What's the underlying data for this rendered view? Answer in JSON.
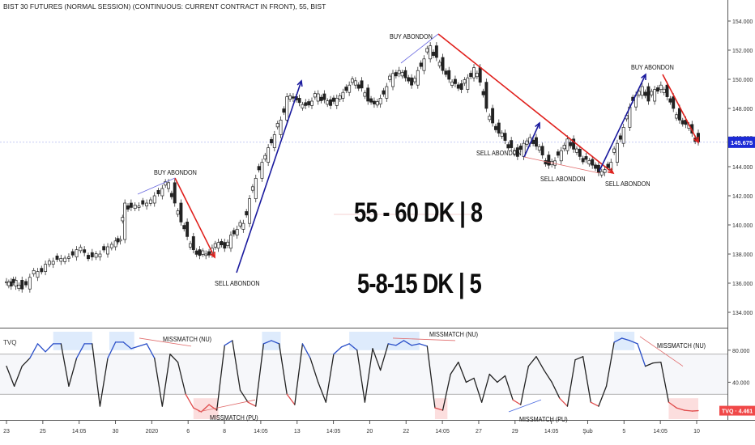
{
  "title": "BIST 30 FUTURES (NORMAL SESSION) (CONTINUOUS: CURRENT CONTRACT IN FRONT), 55, BIST",
  "big_text_1": "55 - 60 DK |  8",
  "big_text_2": "5-8-15 DK |  5",
  "annotations": {
    "buy1": "BUY ABONDON",
    "sell1": "SELL ABONDON",
    "buy2": "BUY ABONDON",
    "sell2": "SELL ABONDON",
    "sell3": "SELL ABONDON",
    "buy3": "BUY ABONDON",
    "sell4": "SELL ABONDON"
  },
  "mismatch": {
    "m1": "MISSMATCH (NU)",
    "m2": "MISSMATCH (PU)",
    "m3": "MISSMATCH (NU)",
    "m4": "MISSMATCH (PU)",
    "m5": "MISSMATCH (NU)"
  },
  "indicator_label": "TVQ",
  "colors": {
    "up": "#222222",
    "down": "#222222",
    "blue_trend": "#1a1a9e",
    "red_trend": "#e0201c",
    "price_tag": "#1d2bd6",
    "tvq_tag": "#f04848",
    "tvq_blue": "#2a4fc9",
    "tvq_red": "#e04a4a",
    "zone_blue": "#d6e6fb",
    "zone_red": "#fbd6d6"
  },
  "chart_data": {
    "type": "line",
    "price_axis": {
      "ticks": [
        154000,
        152000,
        150000,
        148000,
        146000,
        144000,
        142000,
        140000,
        138000,
        136000,
        134000
      ],
      "labels": [
        "154.000",
        "152.000",
        "150.000",
        "148.000",
        "146.000",
        "144.000",
        "142.000",
        "140.000",
        "138.000",
        "136.000",
        "134.000"
      ],
      "range": [
        133000,
        155000
      ]
    },
    "last_price": {
      "value": 145675,
      "label": "145.675"
    },
    "indicator_axis": {
      "ticks": [
        80,
        40
      ],
      "labels": [
        "80.000",
        "40.000"
      ],
      "range": [
        0,
        100
      ]
    },
    "indicator_last": {
      "value": 4.461,
      "label": "TVQ · 4.461"
    },
    "x_ticks": [
      "23",
      "25",
      "14:05",
      "30",
      "2020",
      "6",
      "8",
      "14:05",
      "13",
      "14:05",
      "20",
      "22",
      "14:05",
      "27",
      "29",
      "14:05",
      "Şub",
      "5",
      "14:05",
      "10"
    ],
    "price_series": [
      {
        "x": 0,
        "y": 136100
      },
      {
        "x": 0.3,
        "y": 135800
      },
      {
        "x": 0.6,
        "y": 136200
      },
      {
        "x": 1,
        "y": 135600
      },
      {
        "x": 1.5,
        "y": 136400
      },
      {
        "x": 2,
        "y": 136800
      },
      {
        "x": 2.5,
        "y": 137300
      },
      {
        "x": 3,
        "y": 137500
      },
      {
        "x": 3.5,
        "y": 137700
      },
      {
        "x": 4,
        "y": 137800
      },
      {
        "x": 4.5,
        "y": 138300
      },
      {
        "x": 5,
        "y": 138100
      },
      {
        "x": 5.5,
        "y": 137800
      },
      {
        "x": 6,
        "y": 138000
      },
      {
        "x": 6.5,
        "y": 138500
      },
      {
        "x": 7,
        "y": 138900
      },
      {
        "x": 7.3,
        "y": 139000
      },
      {
        "x": 7.6,
        "y": 141500
      },
      {
        "x": 8,
        "y": 141200
      },
      {
        "x": 8.5,
        "y": 141300
      },
      {
        "x": 9,
        "y": 141500
      },
      {
        "x": 9.5,
        "y": 142000
      },
      {
        "x": 10,
        "y": 142500
      },
      {
        "x": 10.4,
        "y": 142900
      },
      {
        "x": 10.8,
        "y": 141500
      },
      {
        "x": 11.2,
        "y": 140200
      },
      {
        "x": 11.6,
        "y": 139200
      },
      {
        "x": 12,
        "y": 138300
      },
      {
        "x": 12.4,
        "y": 137900
      },
      {
        "x": 12.8,
        "y": 138000
      },
      {
        "x": 13.2,
        "y": 138400
      },
      {
        "x": 13.6,
        "y": 138800
      },
      {
        "x": 14,
        "y": 138400
      },
      {
        "x": 14.4,
        "y": 139300
      },
      {
        "x": 14.8,
        "y": 139700
      },
      {
        "x": 15.2,
        "y": 140100
      },
      {
        "x": 15.6,
        "y": 141800
      },
      {
        "x": 16,
        "y": 143200
      },
      {
        "x": 16.4,
        "y": 144300
      },
      {
        "x": 16.8,
        "y": 145300
      },
      {
        "x": 17.2,
        "y": 146200
      },
      {
        "x": 17.6,
        "y": 147200
      },
      {
        "x": 18,
        "y": 148800
      },
      {
        "x": 18.4,
        "y": 148700
      },
      {
        "x": 18.8,
        "y": 148400
      },
      {
        "x": 19.2,
        "y": 148200
      },
      {
        "x": 19.6,
        "y": 148500
      },
      {
        "x": 20,
        "y": 149000
      },
      {
        "x": 20.4,
        "y": 148600
      },
      {
        "x": 20.8,
        "y": 148200
      },
      {
        "x": 21.2,
        "y": 148700
      },
      {
        "x": 21.6,
        "y": 149100
      },
      {
        "x": 22,
        "y": 149600
      },
      {
        "x": 22.4,
        "y": 149900
      },
      {
        "x": 22.8,
        "y": 149400
      },
      {
        "x": 23.2,
        "y": 148500
      },
      {
        "x": 23.6,
        "y": 148300
      },
      {
        "x": 24,
        "y": 148700
      },
      {
        "x": 24.4,
        "y": 149500
      },
      {
        "x": 24.8,
        "y": 150400
      },
      {
        "x": 25.2,
        "y": 150600
      },
      {
        "x": 25.6,
        "y": 150100
      },
      {
        "x": 26,
        "y": 149600
      },
      {
        "x": 26.4,
        "y": 150600
      },
      {
        "x": 26.8,
        "y": 151400
      },
      {
        "x": 27.2,
        "y": 152300
      },
      {
        "x": 27.6,
        "y": 151500
      },
      {
        "x": 28,
        "y": 150600
      },
      {
        "x": 28.4,
        "y": 150000
      },
      {
        "x": 28.8,
        "y": 149700
      },
      {
        "x": 29.2,
        "y": 149300
      },
      {
        "x": 29.6,
        "y": 150100
      },
      {
        "x": 30,
        "y": 150800
      },
      {
        "x": 30.4,
        "y": 149800
      },
      {
        "x": 30.8,
        "y": 148000
      },
      {
        "x": 31.2,
        "y": 147000
      },
      {
        "x": 31.6,
        "y": 146300
      },
      {
        "x": 32,
        "y": 145800
      },
      {
        "x": 32.4,
        "y": 145300
      },
      {
        "x": 32.8,
        "y": 144700
      },
      {
        "x": 33.2,
        "y": 145600
      },
      {
        "x": 33.6,
        "y": 146000
      },
      {
        "x": 34,
        "y": 145400
      },
      {
        "x": 34.4,
        "y": 144800
      },
      {
        "x": 34.8,
        "y": 144100
      },
      {
        "x": 35.2,
        "y": 144400
      },
      {
        "x": 35.6,
        "y": 145100
      },
      {
        "x": 36,
        "y": 145900
      },
      {
        "x": 36.4,
        "y": 145200
      },
      {
        "x": 36.8,
        "y": 144700
      },
      {
        "x": 37.2,
        "y": 144500
      },
      {
        "x": 37.6,
        "y": 144100
      },
      {
        "x": 38,
        "y": 143600
      },
      {
        "x": 38.4,
        "y": 143800
      },
      {
        "x": 38.8,
        "y": 144300
      },
      {
        "x": 39.2,
        "y": 145600
      },
      {
        "x": 39.6,
        "y": 146700
      },
      {
        "x": 40,
        "y": 148100
      },
      {
        "x": 40.4,
        "y": 148900
      },
      {
        "x": 40.8,
        "y": 149500
      },
      {
        "x": 41.2,
        "y": 148500
      },
      {
        "x": 41.6,
        "y": 149300
      },
      {
        "x": 42,
        "y": 149600
      },
      {
        "x": 42.4,
        "y": 148800
      },
      {
        "x": 42.8,
        "y": 148000
      },
      {
        "x": 43.2,
        "y": 147200
      },
      {
        "x": 43.6,
        "y": 146900
      },
      {
        "x": 44,
        "y": 146300
      },
      {
        "x": 44.4,
        "y": 145700
      }
    ],
    "tvq_series": [
      {
        "x": 0,
        "y": 60
      },
      {
        "x": 0.5,
        "y": 35
      },
      {
        "x": 1,
        "y": 60
      },
      {
        "x": 1.5,
        "y": 70
      },
      {
        "x": 2,
        "y": 88
      },
      {
        "x": 2.5,
        "y": 78
      },
      {
        "x": 3,
        "y": 88
      },
      {
        "x": 3.5,
        "y": 88
      },
      {
        "x": 4,
        "y": 35
      },
      {
        "x": 4.5,
        "y": 70
      },
      {
        "x": 5,
        "y": 88
      },
      {
        "x": 5.5,
        "y": 88
      },
      {
        "x": 6,
        "y": 10
      },
      {
        "x": 6.5,
        "y": 70
      },
      {
        "x": 7,
        "y": 90
      },
      {
        "x": 7.5,
        "y": 90
      },
      {
        "x": 8,
        "y": 82
      },
      {
        "x": 8.5,
        "y": 85
      },
      {
        "x": 9,
        "y": 88
      },
      {
        "x": 9.5,
        "y": 70
      },
      {
        "x": 10,
        "y": 10
      },
      {
        "x": 10.5,
        "y": 75
      },
      {
        "x": 11,
        "y": 65
      },
      {
        "x": 11.5,
        "y": 25
      },
      {
        "x": 12,
        "y": 8
      },
      {
        "x": 12.5,
        "y": 3
      },
      {
        "x": 13,
        "y": 12
      },
      {
        "x": 13.5,
        "y": 5
      },
      {
        "x": 14,
        "y": 86
      },
      {
        "x": 14.5,
        "y": 92
      },
      {
        "x": 15,
        "y": 30
      },
      {
        "x": 15.5,
        "y": 15
      },
      {
        "x": 16,
        "y": 10
      },
      {
        "x": 16.5,
        "y": 88
      },
      {
        "x": 17,
        "y": 92
      },
      {
        "x": 17.5,
        "y": 88
      },
      {
        "x": 18,
        "y": 25
      },
      {
        "x": 18.5,
        "y": 12
      },
      {
        "x": 19,
        "y": 88
      },
      {
        "x": 19.5,
        "y": 70
      },
      {
        "x": 20,
        "y": 40
      },
      {
        "x": 20.5,
        "y": 15
      },
      {
        "x": 21,
        "y": 75
      },
      {
        "x": 21.5,
        "y": 84
      },
      {
        "x": 22,
        "y": 88
      },
      {
        "x": 22.5,
        "y": 80
      },
      {
        "x": 23,
        "y": 15
      },
      {
        "x": 23.5,
        "y": 82
      },
      {
        "x": 24,
        "y": 55
      },
      {
        "x": 24.5,
        "y": 88
      },
      {
        "x": 25,
        "y": 86
      },
      {
        "x": 25.5,
        "y": 92
      },
      {
        "x": 26,
        "y": 86
      },
      {
        "x": 26.5,
        "y": 88
      },
      {
        "x": 27,
        "y": 85
      },
      {
        "x": 27.5,
        "y": 8
      },
      {
        "x": 28,
        "y": 5
      },
      {
        "x": 28.5,
        "y": 50
      },
      {
        "x": 29,
        "y": 65
      },
      {
        "x": 29.5,
        "y": 40
      },
      {
        "x": 30,
        "y": 45
      },
      {
        "x": 30.5,
        "y": 15
      },
      {
        "x": 31,
        "y": 50
      },
      {
        "x": 31.5,
        "y": 40
      },
      {
        "x": 32,
        "y": 48
      },
      {
        "x": 32.5,
        "y": 18
      },
      {
        "x": 33,
        "y": 12
      },
      {
        "x": 33.5,
        "y": 60
      },
      {
        "x": 34,
        "y": 72
      },
      {
        "x": 34.5,
        "y": 55
      },
      {
        "x": 35,
        "y": 40
      },
      {
        "x": 35.5,
        "y": 20
      },
      {
        "x": 36,
        "y": 10
      },
      {
        "x": 36.5,
        "y": 68
      },
      {
        "x": 37,
        "y": 72
      },
      {
        "x": 37.5,
        "y": 15
      },
      {
        "x": 38,
        "y": 10
      },
      {
        "x": 38.5,
        "y": 35
      },
      {
        "x": 39,
        "y": 90
      },
      {
        "x": 39.5,
        "y": 95
      },
      {
        "x": 40,
        "y": 92
      },
      {
        "x": 40.5,
        "y": 88
      },
      {
        "x": 41,
        "y": 60
      },
      {
        "x": 41.5,
        "y": 64
      },
      {
        "x": 42,
        "y": 65
      },
      {
        "x": 42.5,
        "y": 15
      },
      {
        "x": 43,
        "y": 8
      },
      {
        "x": 43.5,
        "y": 5
      },
      {
        "x": 44,
        "y": 4
      },
      {
        "x": 44.4,
        "y": 4.5
      }
    ]
  }
}
